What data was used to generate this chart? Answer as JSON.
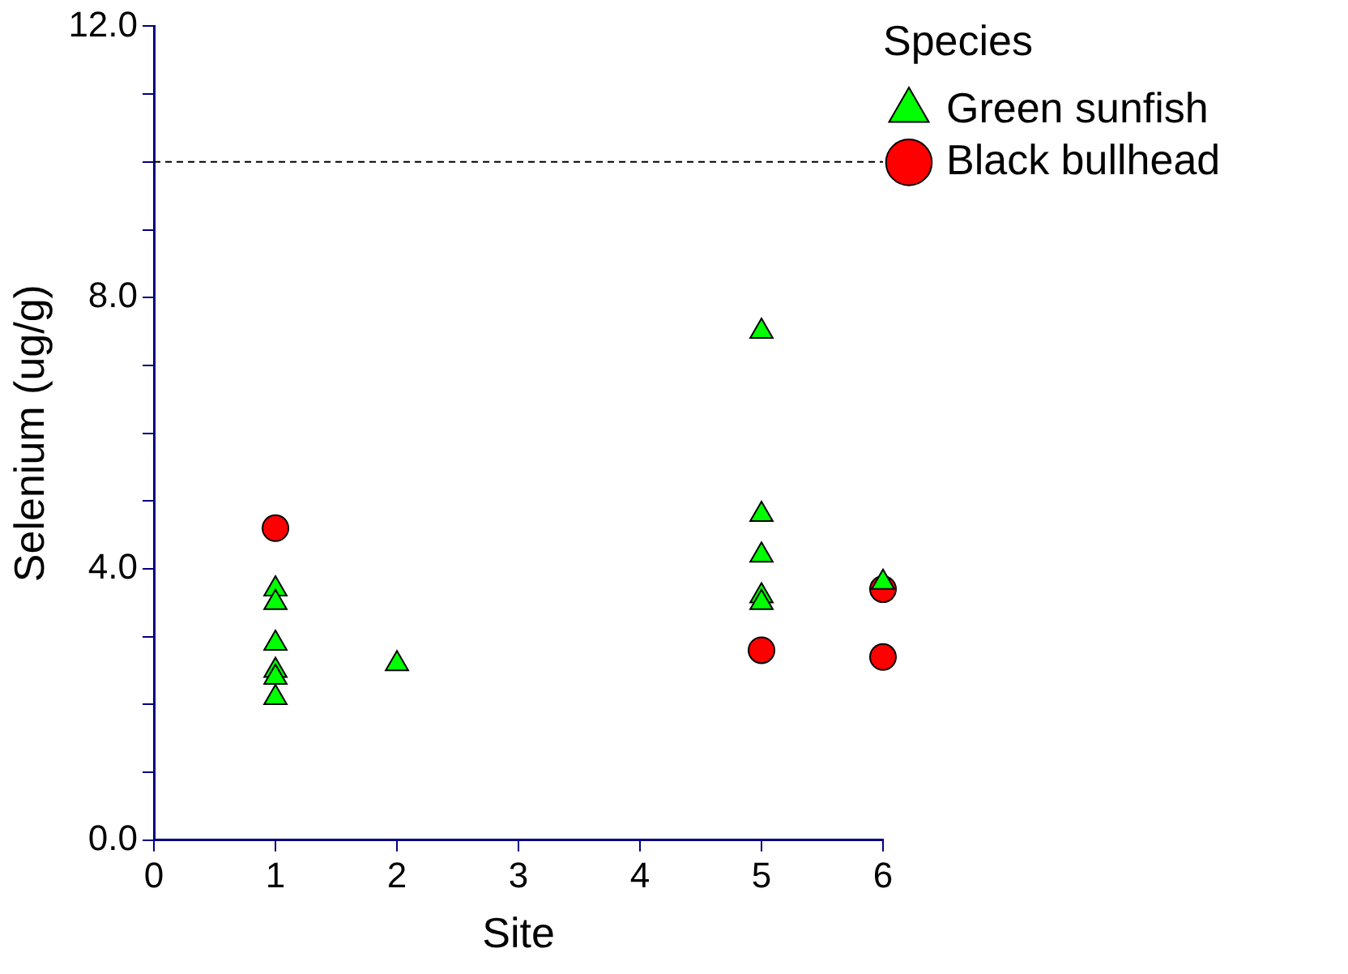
{
  "chart_data": {
    "type": "scatter",
    "xlabel": "Site",
    "ylabel": "Selenium (ug/g)",
    "legend_title": "Species",
    "legend": "top right",
    "xlim": [
      0,
      6
    ],
    "xticks": [
      0,
      1,
      2,
      3,
      4,
      5,
      6
    ],
    "ylim": [
      0,
      12
    ],
    "yticks": [
      {
        "value": 0,
        "label": "0.0"
      },
      {
        "value": 1,
        "label": null
      },
      {
        "value": 2,
        "label": null
      },
      {
        "value": 3,
        "label": null
      },
      {
        "value": 4,
        "label": "4.0"
      },
      {
        "value": 5,
        "label": null
      },
      {
        "value": 6,
        "label": null
      },
      {
        "value": 7,
        "label": null
      },
      {
        "value": 8,
        "label": "8.0"
      },
      {
        "value": 9,
        "label": null
      },
      {
        "value": 10,
        "label": null
      },
      {
        "value": 11,
        "label": null
      },
      {
        "value": 12,
        "label": "12.0"
      }
    ],
    "grid": false,
    "ref_lines": [
      {
        "axis": "y",
        "value": 10,
        "color": "#000000",
        "line_style": "dashed"
      }
    ],
    "series": [
      {
        "name": "Green sunfish",
        "color": "#00ff00",
        "marker": "triangle",
        "x": [
          1,
          1,
          1,
          1,
          1,
          1,
          2,
          5,
          5,
          5,
          5,
          5,
          6
        ],
        "values": [
          3.7,
          3.5,
          2.9,
          2.5,
          2.4,
          2.1,
          2.6,
          7.5,
          4.8,
          4.2,
          3.6,
          3.5,
          3.8
        ]
      },
      {
        "name": "Black bullhead",
        "color": "#ff0000",
        "marker": "circle",
        "x": [
          1,
          5,
          6,
          6
        ],
        "values": [
          4.6,
          2.8,
          3.7,
          2.7
        ]
      }
    ]
  }
}
